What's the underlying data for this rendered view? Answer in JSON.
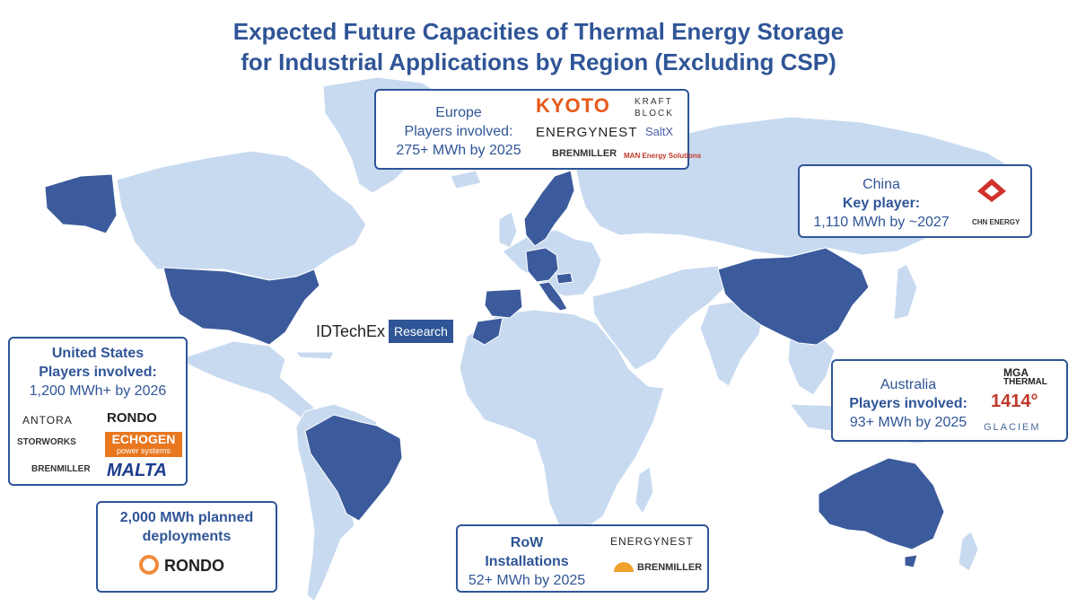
{
  "title": {
    "line1": "Expected Future Capacities of Thermal Energy Storage",
    "line2": "for Industrial Applications by Region (Excluding CSP)"
  },
  "colors": {
    "accent": "#2f5597",
    "highlighted_country": "#3b5b9c",
    "land": "#c8daf0",
    "border": "#ffffff"
  },
  "branding": {
    "name": "IDTechEx",
    "suffix": "Research"
  },
  "regions": {
    "europe": {
      "title": "Europe",
      "subtitle": "Players involved:",
      "capacity": "275+ MWh by 2025",
      "logos": [
        "KYOTO",
        "KRAFT BLOCK",
        "ENERGYNEST",
        "SaltX",
        "BRENMILLER",
        "MAN Energy Solutions"
      ]
    },
    "china": {
      "title": "China",
      "subtitle": "Key player:",
      "capacity": "1,110 MWh by ~2027",
      "logos": [
        "CHN ENERGY"
      ]
    },
    "us": {
      "title": "United States",
      "subtitle": "Players involved:",
      "capacity": "1,200 MWh+ by 2026",
      "logos": [
        "ANTORA",
        "RONDO",
        "STORWORKS",
        "ECHOGEN",
        "power systems",
        "BRENMILLER",
        "MALTA"
      ]
    },
    "planned": {
      "line1": "2,000 MWh planned",
      "line2": "deployments",
      "logos": [
        "RONDO"
      ]
    },
    "australia": {
      "title": "Australia",
      "subtitle": "Players involved:",
      "capacity": "93+ MWh by 2025",
      "logos": [
        "MGA",
        "THERMAL",
        "1414°",
        "GLACIEM"
      ]
    },
    "row": {
      "title": "RoW",
      "subtitle": "Installations",
      "capacity": "52+ MWh by 2025",
      "logos": [
        "ENERGYNEST",
        "BRENMILLER"
      ]
    }
  }
}
